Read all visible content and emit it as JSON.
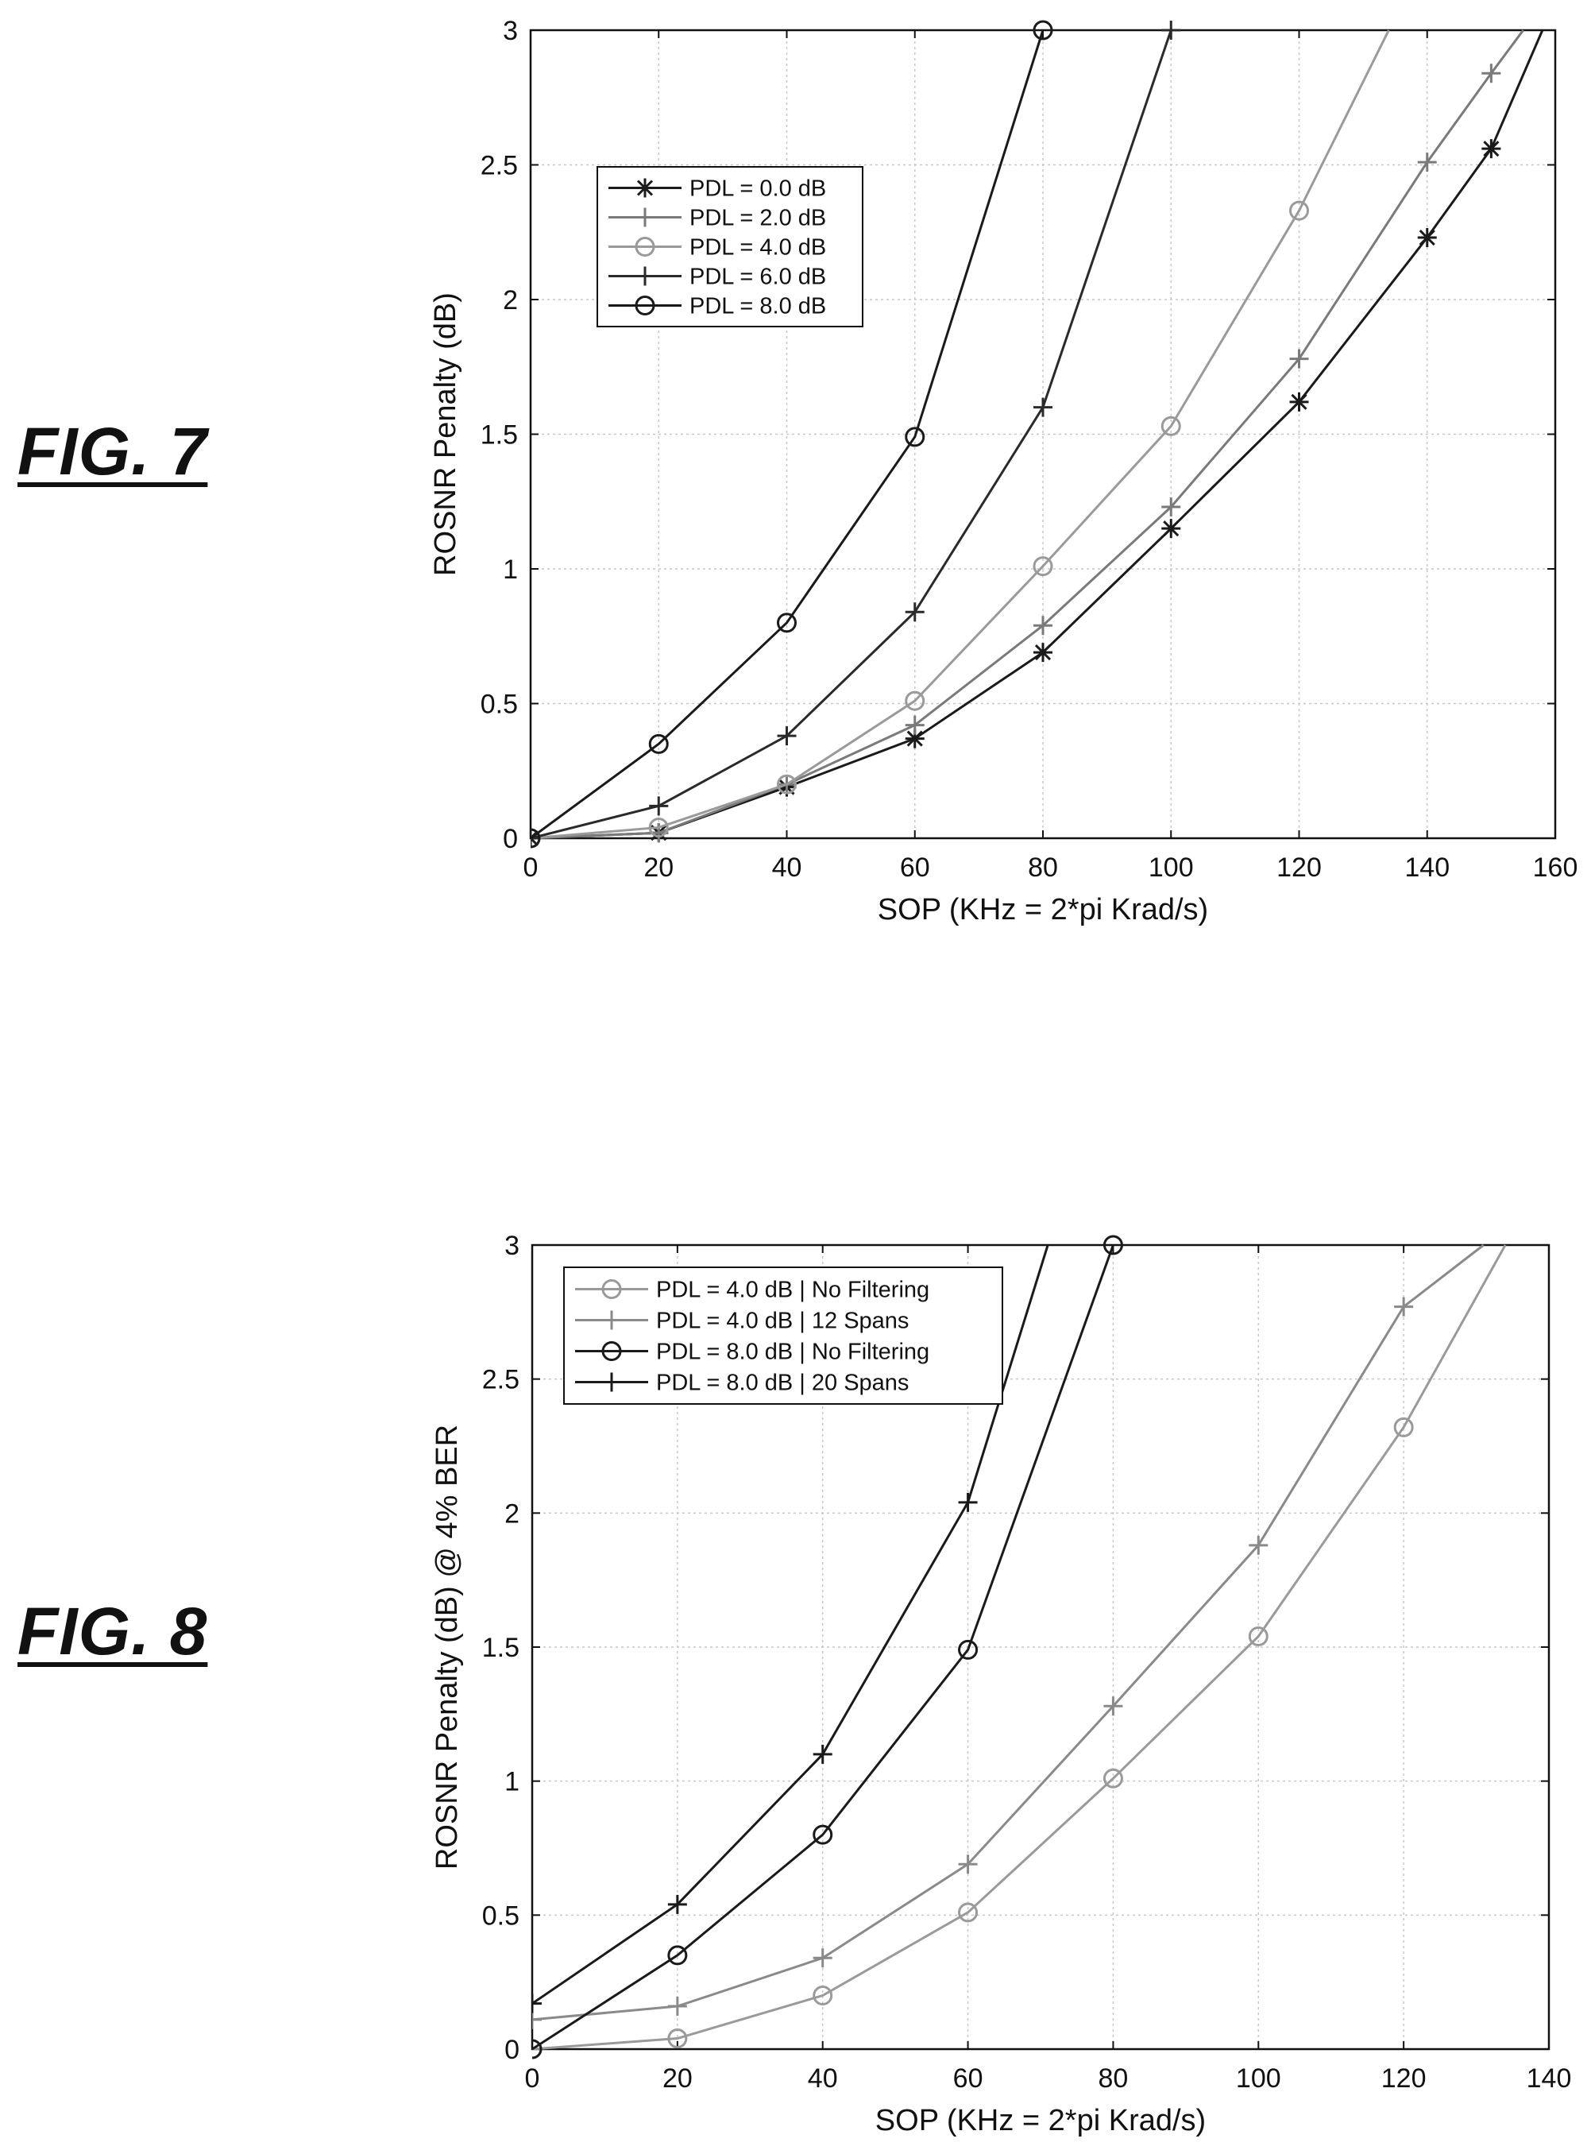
{
  "figures": [
    {
      "label": "FIG. 7"
    },
    {
      "label": "FIG. 8"
    }
  ],
  "chart_data": [
    {
      "type": "line",
      "title": "",
      "xlabel": "SOP (KHz = 2*pi Krad/s)",
      "ylabel": "ROSNR Penalty (dB)",
      "xlim": [
        0,
        160
      ],
      "ylim": [
        0,
        3
      ],
      "xticks": [
        "0",
        "20",
        "40",
        "60",
        "80",
        "100",
        "120",
        "140",
        "160"
      ],
      "yticks": [
        "0",
        "0.5",
        "1",
        "1.5",
        "2",
        "2.5",
        "3"
      ],
      "grid": true,
      "legend_position": "top-left",
      "series": [
        {
          "name": "PDL = 0.0 dB",
          "marker": "asterisk",
          "color": "#1a1a1a",
          "x": [
            0,
            20,
            40,
            60,
            80,
            100,
            120,
            140,
            150,
            158
          ],
          "y": [
            0,
            0.02,
            0.19,
            0.37,
            0.69,
            1.15,
            1.62,
            2.23,
            2.56,
            3.0
          ],
          "marker_x": [
            0,
            20,
            40,
            60,
            80,
            100,
            120,
            140,
            150
          ]
        },
        {
          "name": "PDL = 2.0 dB",
          "marker": "plus",
          "color": "#7a7a7a",
          "x": [
            0,
            20,
            40,
            60,
            80,
            100,
            120,
            140,
            150,
            155
          ],
          "y": [
            0,
            0.02,
            0.2,
            0.42,
            0.79,
            1.23,
            1.78,
            2.51,
            2.84,
            3.0
          ],
          "marker_x": [
            0,
            20,
            40,
            60,
            80,
            100,
            120,
            140,
            150
          ]
        },
        {
          "name": "PDL = 4.0 dB",
          "marker": "circle",
          "color": "#9a9a9a",
          "x": [
            0,
            20,
            40,
            60,
            80,
            100,
            120,
            134
          ],
          "y": [
            0,
            0.04,
            0.2,
            0.51,
            1.01,
            1.53,
            2.33,
            3.0
          ],
          "marker_x": [
            0,
            20,
            40,
            60,
            80,
            100,
            120
          ]
        },
        {
          "name": "PDL = 6.0 dB",
          "marker": "plus",
          "color": "#2a2a2a",
          "x": [
            0,
            20,
            40,
            60,
            80,
            100
          ],
          "y": [
            0,
            0.12,
            0.38,
            0.84,
            1.6,
            3.0
          ],
          "marker_x": [
            0,
            20,
            40,
            60,
            80,
            100
          ]
        },
        {
          "name": "PDL = 8.0 dB",
          "marker": "circle",
          "color": "#1a1a1a",
          "x": [
            0,
            20,
            40,
            60,
            80
          ],
          "y": [
            0,
            0.35,
            0.8,
            1.49,
            3.0
          ],
          "marker_x": [
            0,
            20,
            40,
            60,
            80
          ]
        }
      ]
    },
    {
      "type": "line",
      "title": "",
      "xlabel": "SOP (KHz = 2*pi Krad/s)",
      "ylabel": "ROSNR Penalty (dB) @ 4% BER",
      "xlim": [
        0,
        140
      ],
      "ylim": [
        0,
        3
      ],
      "xticks": [
        "0",
        "20",
        "40",
        "60",
        "80",
        "100",
        "120",
        "140"
      ],
      "yticks": [
        "0",
        "0.5",
        "1",
        "1.5",
        "2",
        "2.5",
        "3"
      ],
      "grid": true,
      "legend_position": "top-left",
      "series": [
        {
          "name": "PDL = 4.0 dB | No Filtering",
          "marker": "circle",
          "color": "#9a9a9a",
          "x": [
            0,
            20,
            40,
            60,
            80,
            100,
            120,
            134
          ],
          "y": [
            0,
            0.04,
            0.2,
            0.51,
            1.01,
            1.54,
            2.32,
            3.0
          ],
          "marker_x": [
            0,
            20,
            40,
            60,
            80,
            100,
            120
          ]
        },
        {
          "name": "PDL = 4.0 dB | 12 Spans",
          "marker": "plus",
          "color": "#8a8a8a",
          "x": [
            0,
            20,
            40,
            60,
            80,
            100,
            120,
            131
          ],
          "y": [
            0.11,
            0.16,
            0.34,
            0.69,
            1.28,
            1.88,
            2.77,
            3.0
          ],
          "marker_x": [
            0,
            20,
            40,
            60,
            80,
            100,
            120
          ]
        },
        {
          "name": "PDL = 8.0 dB | No Filtering",
          "marker": "circle",
          "color": "#1a1a1a",
          "x": [
            0,
            20,
            40,
            60,
            80
          ],
          "y": [
            0,
            0.35,
            0.8,
            1.49,
            3.0
          ],
          "marker_x": [
            0,
            20,
            40,
            60,
            80
          ]
        },
        {
          "name": "PDL = 8.0 dB | 20 Spans",
          "marker": "plus",
          "color": "#1a1a1a",
          "x": [
            0,
            20,
            40,
            60,
            71
          ],
          "y": [
            0.17,
            0.54,
            1.1,
            2.04,
            3.0
          ],
          "marker_x": [
            0,
            20,
            40,
            60
          ]
        }
      ]
    }
  ]
}
